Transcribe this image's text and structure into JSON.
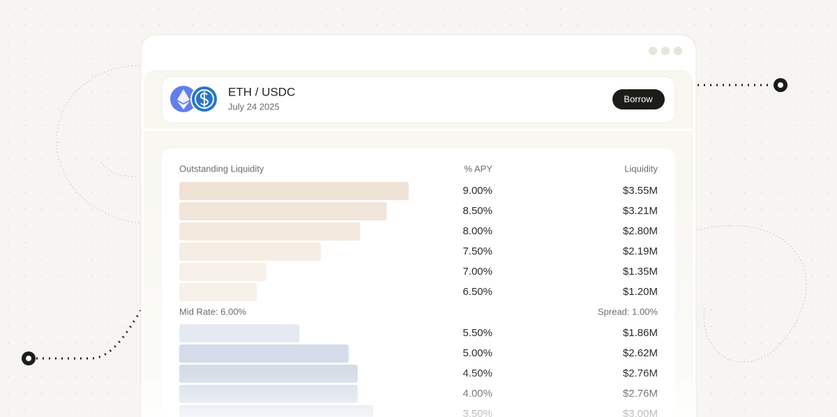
{
  "header": {
    "pair": "ETH / USDC",
    "date": "July 24 2025",
    "button": "Borrow"
  },
  "table": {
    "columns": [
      "Outstanding Liquidity",
      "% APY",
      "Liquidity"
    ],
    "asks": [
      {
        "apy": "9.00%",
        "liquidity": 3.55,
        "liquidity_label": "$3.55M"
      },
      {
        "apy": "8.50%",
        "liquidity": 3.21,
        "liquidity_label": "$3.21M"
      },
      {
        "apy": "8.00%",
        "liquidity": 2.8,
        "liquidity_label": "$2.80M"
      },
      {
        "apy": "7.50%",
        "liquidity": 2.19,
        "liquidity_label": "$2.19M"
      },
      {
        "apy": "7.00%",
        "liquidity": 1.35,
        "liquidity_label": "$1.35M"
      },
      {
        "apy": "6.50%",
        "liquidity": 1.2,
        "liquidity_label": "$1.20M"
      }
    ],
    "mid_rate": "Mid Rate: 6.00%",
    "spread": "Spread: 1.00%",
    "bids": [
      {
        "apy": "5.50%",
        "liquidity": 1.86,
        "liquidity_label": "$1.86M"
      },
      {
        "apy": "5.00%",
        "liquidity": 2.62,
        "liquidity_label": "$2.62M"
      },
      {
        "apy": "4.50%",
        "liquidity": 2.76,
        "liquidity_label": "$2.76M"
      },
      {
        "apy": "4.00%",
        "liquidity": 2.76,
        "liquidity_label": "$2.76M"
      },
      {
        "apy": "3.50%",
        "liquidity": 3.0,
        "liquidity_label": "$3.00M"
      }
    ]
  }
}
